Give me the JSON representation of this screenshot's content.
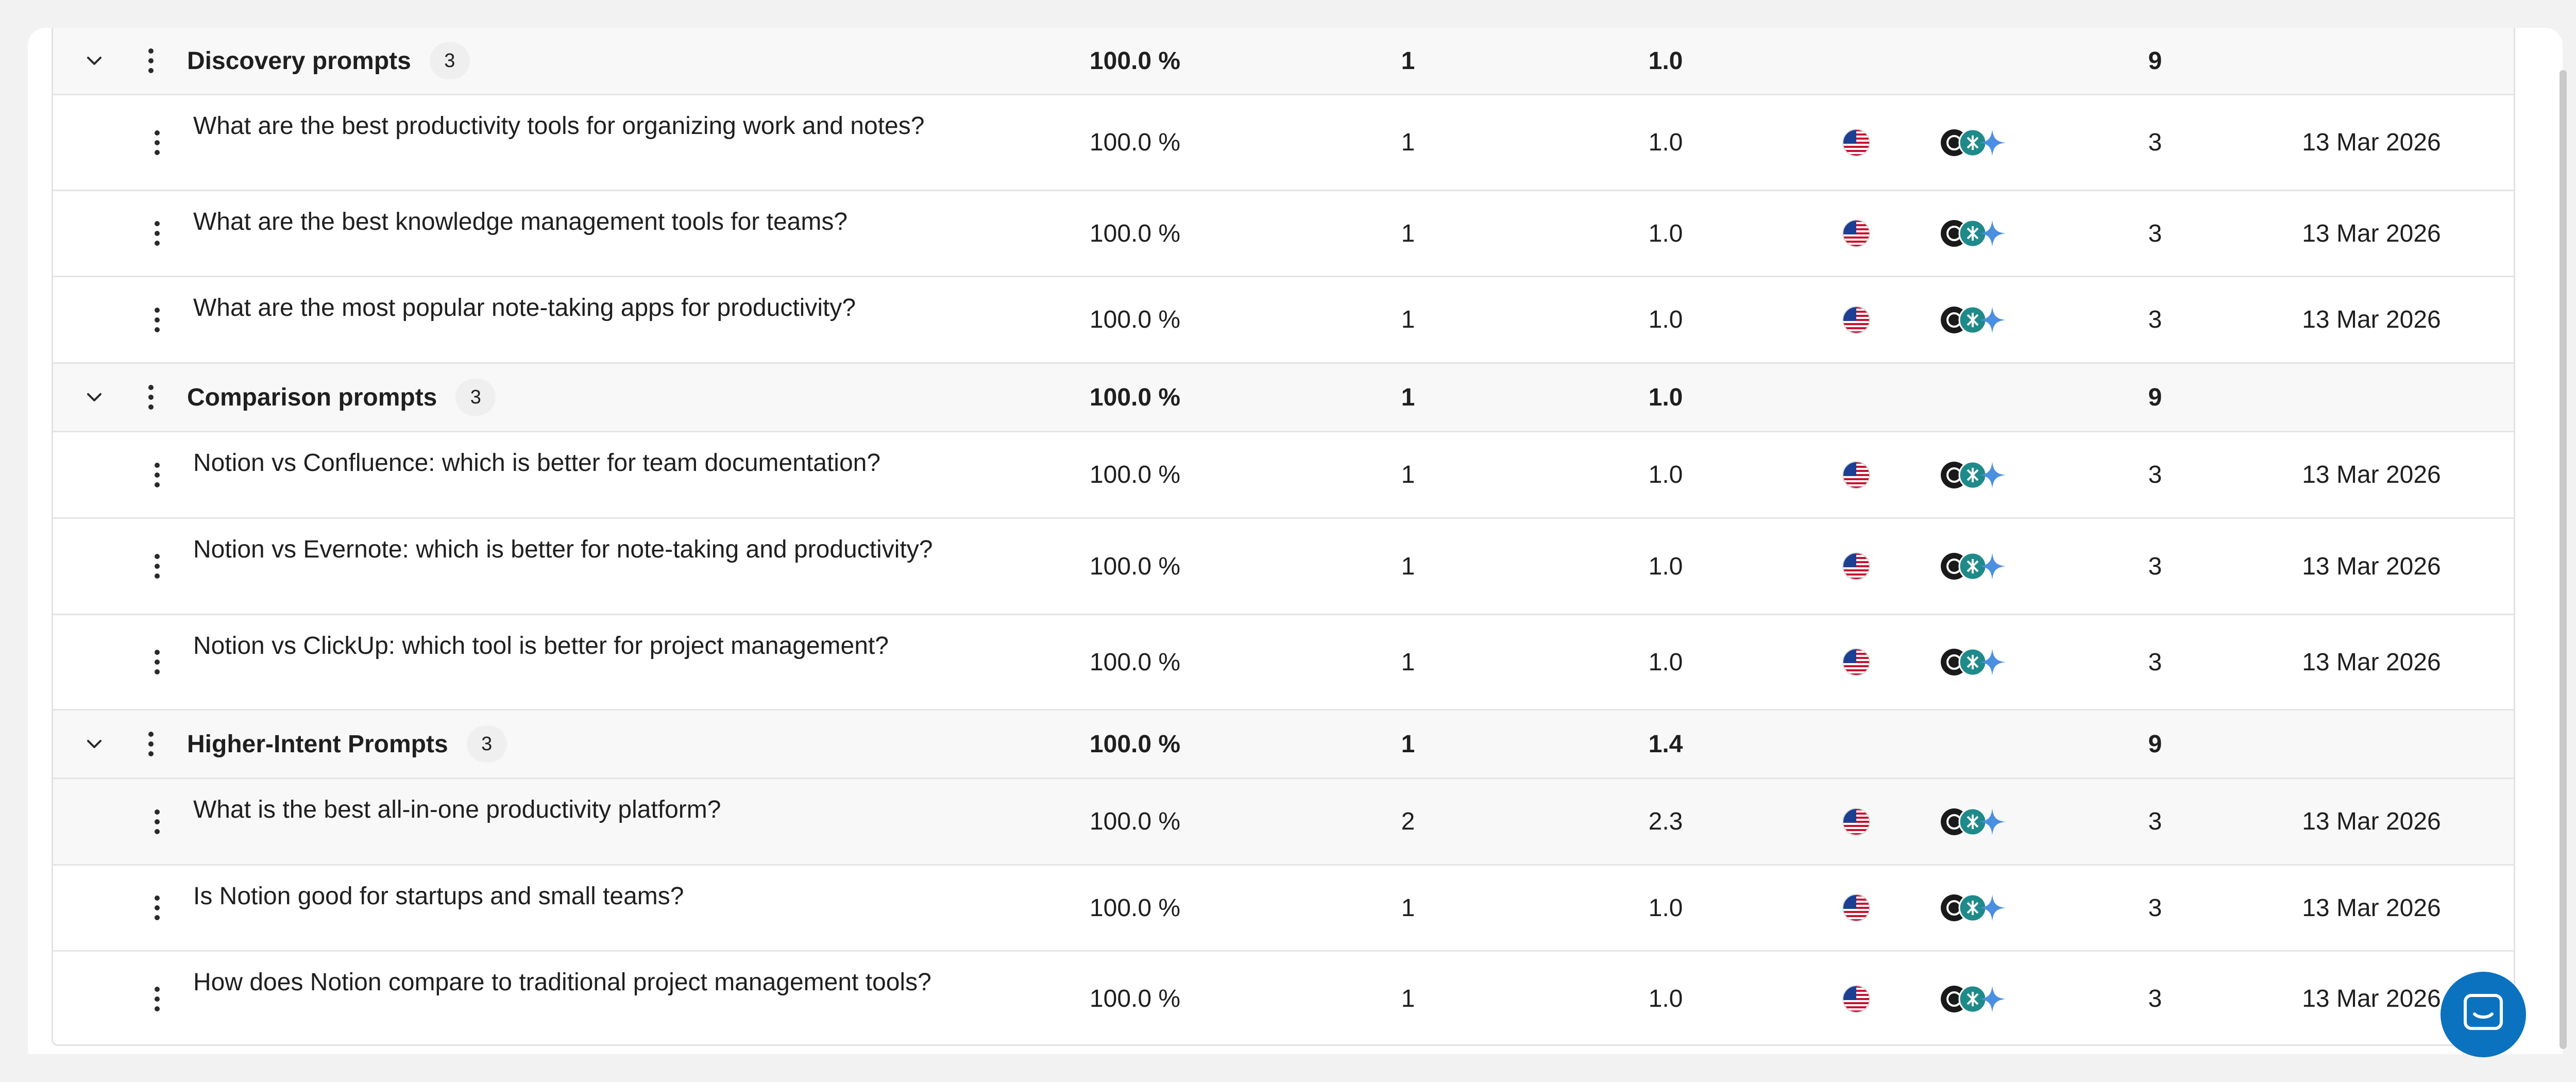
{
  "colors": {
    "page_bg": "#f2f2f2",
    "group_row_bg": "#f8f8f8",
    "chat_button": "#0b72bf",
    "engine_chatgpt": "#1a1a1a",
    "engine_perplexity": "#1f8a8a",
    "engine_gemini": "#4a8fe0"
  },
  "icons": {
    "expand": "chevron-down-icon",
    "menu": "kebab-menu-icon",
    "country": "us-flag-icon",
    "engines": [
      "chatgpt-icon",
      "perplexity-icon",
      "gemini-icon"
    ],
    "chat": "chat-support-icon"
  },
  "groups": [
    {
      "name": "Discovery prompts",
      "count": "3",
      "visibility": "100.0 %",
      "position": "1",
      "avg": "1.0",
      "total": "9",
      "prompts": [
        {
          "text": "What are the best productivity tools for organizing work and notes?",
          "visibility": "100.0 %",
          "position": "1",
          "avg": "1.0",
          "count": "3",
          "date": "13 Mar 2026"
        },
        {
          "text": "What are the best knowledge management tools for teams?",
          "visibility": "100.0 %",
          "position": "1",
          "avg": "1.0",
          "count": "3",
          "date": "13 Mar 2026"
        },
        {
          "text": "What are the most popular note-taking apps for productivity?",
          "visibility": "100.0 %",
          "position": "1",
          "avg": "1.0",
          "count": "3",
          "date": "13 Mar 2026"
        }
      ]
    },
    {
      "name": "Comparison prompts",
      "count": "3",
      "visibility": "100.0 %",
      "position": "1",
      "avg": "1.0",
      "total": "9",
      "prompts": [
        {
          "text": "Notion vs Confluence: which is better for team documentation?",
          "visibility": "100.0 %",
          "position": "1",
          "avg": "1.0",
          "count": "3",
          "date": "13 Mar 2026"
        },
        {
          "text": "Notion vs Evernote: which is better for note-taking and productivity?",
          "visibility": "100.0 %",
          "position": "1",
          "avg": "1.0",
          "count": "3",
          "date": "13 Mar 2026"
        },
        {
          "text": "Notion vs ClickUp: which tool is better for project management?",
          "visibility": "100.0 %",
          "position": "1",
          "avg": "1.0",
          "count": "3",
          "date": "13 Mar 2026"
        }
      ]
    },
    {
      "name": "Higher-Intent Prompts",
      "count": "3",
      "visibility": "100.0 %",
      "position": "1",
      "avg": "1.4",
      "total": "9",
      "prompts": [
        {
          "text": "What is the best all-in-one productivity platform?",
          "visibility": "100.0 %",
          "position": "2",
          "avg": "2.3",
          "count": "3",
          "date": "13 Mar 2026"
        },
        {
          "text": "Is Notion good for startups and small teams?",
          "visibility": "100.0 %",
          "position": "1",
          "avg": "1.0",
          "count": "3",
          "date": "13 Mar 2026"
        },
        {
          "text": "How does Notion compare to traditional project management tools?",
          "visibility": "100.0 %",
          "position": "1",
          "avg": "1.0",
          "count": "3",
          "date": "13 Mar 2026"
        }
      ]
    }
  ]
}
